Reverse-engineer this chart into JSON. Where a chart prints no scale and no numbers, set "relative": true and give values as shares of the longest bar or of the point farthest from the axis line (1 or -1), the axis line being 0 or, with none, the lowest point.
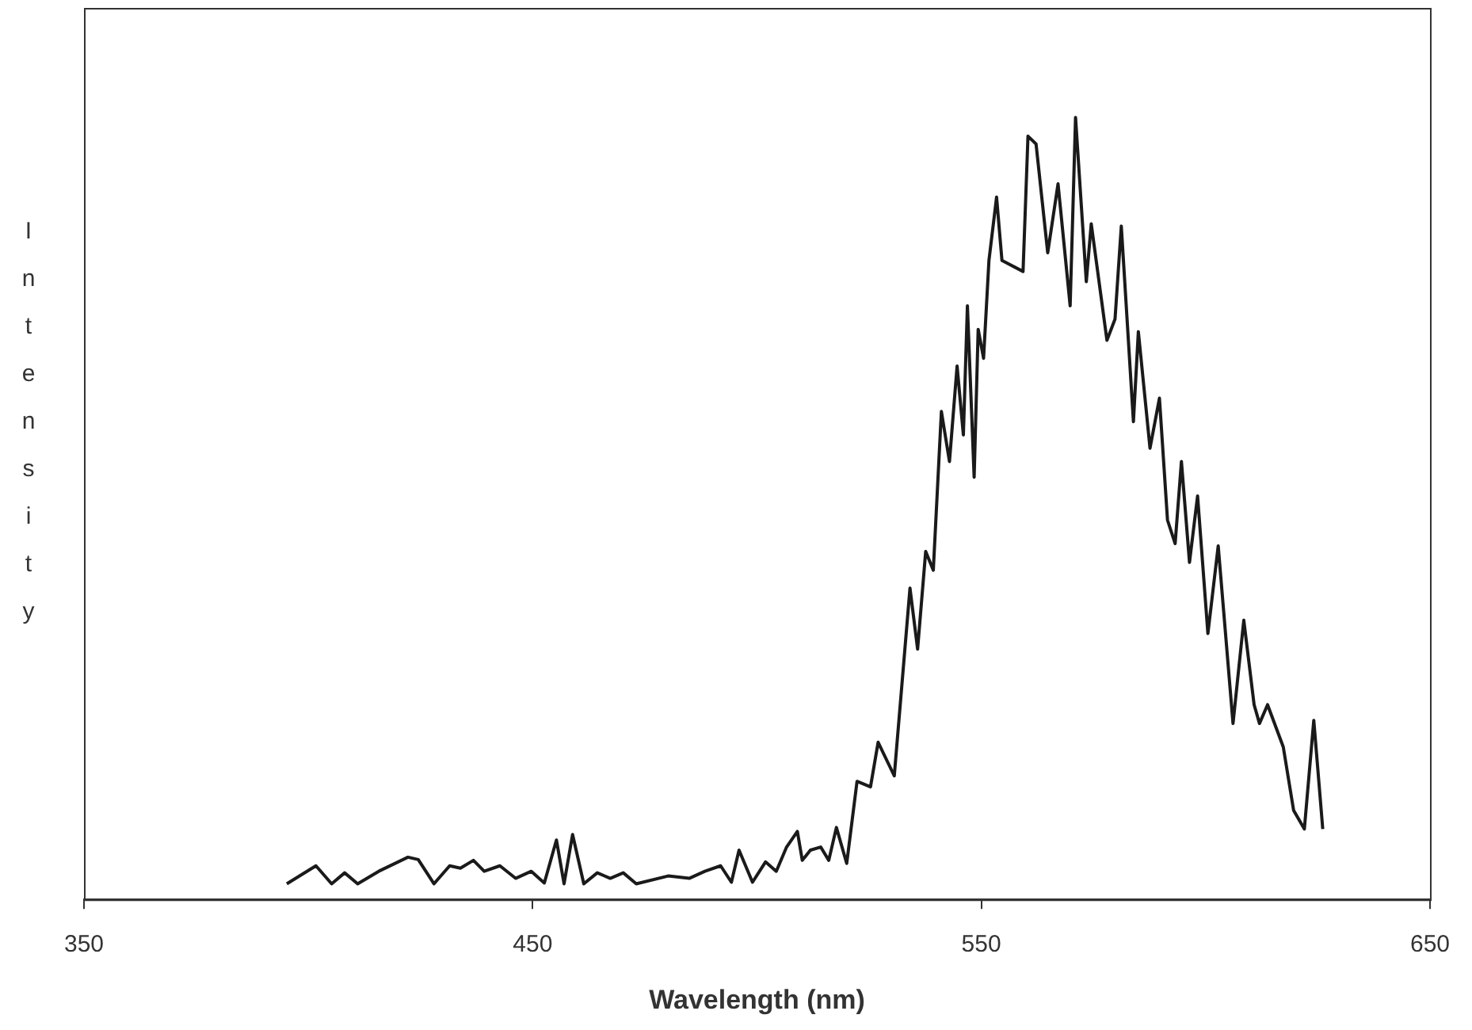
{
  "chart_data": {
    "type": "line",
    "xlabel": "Wavelength (nm)",
    "ylabel": "Intensity",
    "relative": true,
    "xlim": [
      350,
      650
    ],
    "xticks": [
      350,
      450,
      550,
      650
    ],
    "grid": false,
    "legend": false,
    "marker": "none",
    "line_style": "solid",
    "series": [
      {
        "color": "#1a1a1a",
        "x": [
          395.2,
          401.7,
          405.2,
          408.1,
          411.0,
          415.7,
          422.2,
          424.5,
          428.0,
          431.5,
          433.9,
          436.8,
          439.2,
          442.7,
          446.2,
          449.7,
          452.6,
          455.3,
          457.0,
          458.9,
          461.4,
          464.4,
          467.3,
          470.2,
          473.1,
          480.2,
          484.9,
          488.4,
          491.9,
          494.3,
          496.0,
          499.0,
          501.9,
          504.3,
          506.6,
          509.0,
          510.1,
          511.9,
          514.2,
          516.0,
          517.7,
          520.0,
          522.3,
          525.3,
          527.0,
          530.6,
          534.1,
          535.8,
          537.6,
          539.3,
          541.1,
          542.9,
          544.6,
          546.0,
          546.9,
          548.4,
          549.3,
          550.5,
          551.7,
          553.4,
          554.6,
          559.3,
          560.4,
          562.2,
          564.8,
          567.1,
          569.8,
          571.0,
          573.4,
          574.5,
          578.0,
          579.8,
          581.2,
          583.9,
          585.0,
          587.6,
          589.7,
          591.5,
          593.2,
          594.6,
          596.4,
          598.2,
          600.5,
          602.8,
          606.1,
          608.5,
          610.8,
          612.0,
          613.8,
          617.3,
          619.6,
          622.0,
          624.1,
          626.1
        ],
        "values": [
          0.02,
          0.043,
          0.02,
          0.034,
          0.02,
          0.036,
          0.054,
          0.051,
          0.02,
          0.043,
          0.04,
          0.05,
          0.036,
          0.043,
          0.027,
          0.036,
          0.021,
          0.076,
          0.02,
          0.083,
          0.02,
          0.034,
          0.027,
          0.034,
          0.02,
          0.03,
          0.027,
          0.036,
          0.043,
          0.022,
          0.063,
          0.022,
          0.048,
          0.036,
          0.067,
          0.087,
          0.05,
          0.063,
          0.067,
          0.05,
          0.092,
          0.046,
          0.151,
          0.144,
          0.201,
          0.158,
          0.398,
          0.32,
          0.445,
          0.421,
          0.624,
          0.56,
          0.682,
          0.594,
          0.759,
          0.54,
          0.729,
          0.692,
          0.817,
          0.898,
          0.817,
          0.803,
          0.976,
          0.966,
          0.827,
          0.915,
          0.759,
          1.0,
          0.79,
          0.864,
          0.715,
          0.742,
          0.861,
          0.611,
          0.726,
          0.577,
          0.641,
          0.485,
          0.455,
          0.56,
          0.431,
          0.516,
          0.34,
          0.452,
          0.225,
          0.357,
          0.249,
          0.225,
          0.249,
          0.195,
          0.114,
          0.09,
          0.229,
          0.09
        ]
      }
    ]
  }
}
